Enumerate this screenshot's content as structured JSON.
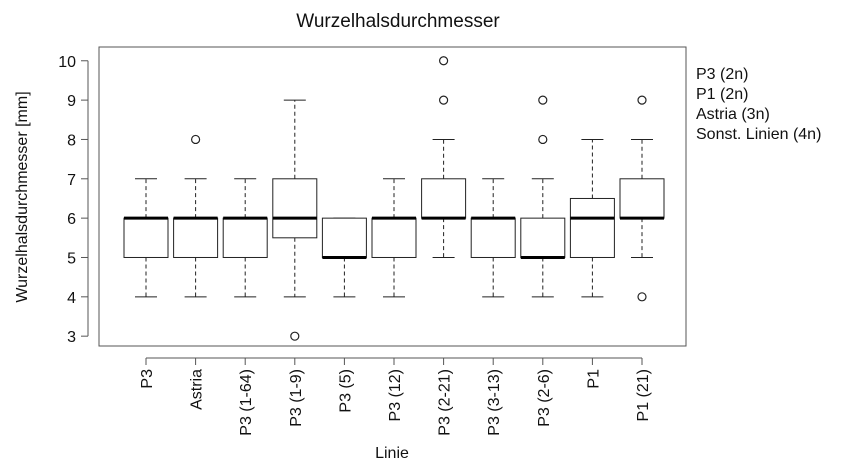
{
  "chart_data": {
    "type": "boxplot",
    "title": "Wurzelhalsdurchmesser",
    "xlabel": "Linie",
    "ylabel": "Wurzelhalsdurchmesser [mm]",
    "ylim": [
      2.75,
      10.35
    ],
    "yticks": [
      3,
      4,
      5,
      6,
      7,
      8,
      9,
      10
    ],
    "grid": false,
    "legend_position": "right",
    "legend": [
      "P3 (2n)",
      "P1 (2n)",
      "Astria (3n)",
      "Sonst. Linien (4n)"
    ],
    "categories": [
      "P3",
      "Astria",
      "P3 (1-64)",
      "P3 (1-9)",
      "P3 (5)",
      "P3 (12)",
      "P3 (2-21)",
      "P3 (3-13)",
      "P3 (2-6)",
      "P1",
      "P1 (21)"
    ],
    "boxes": [
      {
        "category": "P3",
        "whisker_low": 4,
        "q1": 5,
        "median": 6,
        "q3": 6,
        "whisker_high": 7,
        "outliers": []
      },
      {
        "category": "Astria",
        "whisker_low": 4,
        "q1": 5,
        "median": 6,
        "q3": 6,
        "whisker_high": 7,
        "outliers": [
          8
        ]
      },
      {
        "category": "P3 (1-64)",
        "whisker_low": 4,
        "q1": 5,
        "median": 6,
        "q3": 6,
        "whisker_high": 7,
        "outliers": []
      },
      {
        "category": "P3 (1-9)",
        "whisker_low": 4,
        "q1": 5.5,
        "median": 6,
        "q3": 7,
        "whisker_high": 9,
        "outliers": [
          3
        ]
      },
      {
        "category": "P3 (5)",
        "whisker_low": 4,
        "q1": 5,
        "median": 5,
        "q3": 6,
        "whisker_high": 6,
        "outliers": []
      },
      {
        "category": "P3 (12)",
        "whisker_low": 4,
        "q1": 5,
        "median": 6,
        "q3": 6,
        "whisker_high": 7,
        "outliers": []
      },
      {
        "category": "P3 (2-21)",
        "whisker_low": 5,
        "q1": 6,
        "median": 6,
        "q3": 7,
        "whisker_high": 8,
        "outliers": [
          9,
          10
        ]
      },
      {
        "category": "P3 (3-13)",
        "whisker_low": 4,
        "q1": 5,
        "median": 6,
        "q3": 6,
        "whisker_high": 7,
        "outliers": []
      },
      {
        "category": "P3 (2-6)",
        "whisker_low": 4,
        "q1": 5,
        "median": 5,
        "q3": 6,
        "whisker_high": 7,
        "outliers": [
          8,
          9
        ]
      },
      {
        "category": "P1",
        "whisker_low": 4,
        "q1": 5,
        "median": 6,
        "q3": 6.5,
        "whisker_high": 8,
        "outliers": []
      },
      {
        "category": "P1 (21)",
        "whisker_low": 5,
        "q1": 6,
        "median": 6,
        "q3": 7,
        "whisker_high": 8,
        "outliers": [
          4,
          9
        ]
      }
    ]
  }
}
